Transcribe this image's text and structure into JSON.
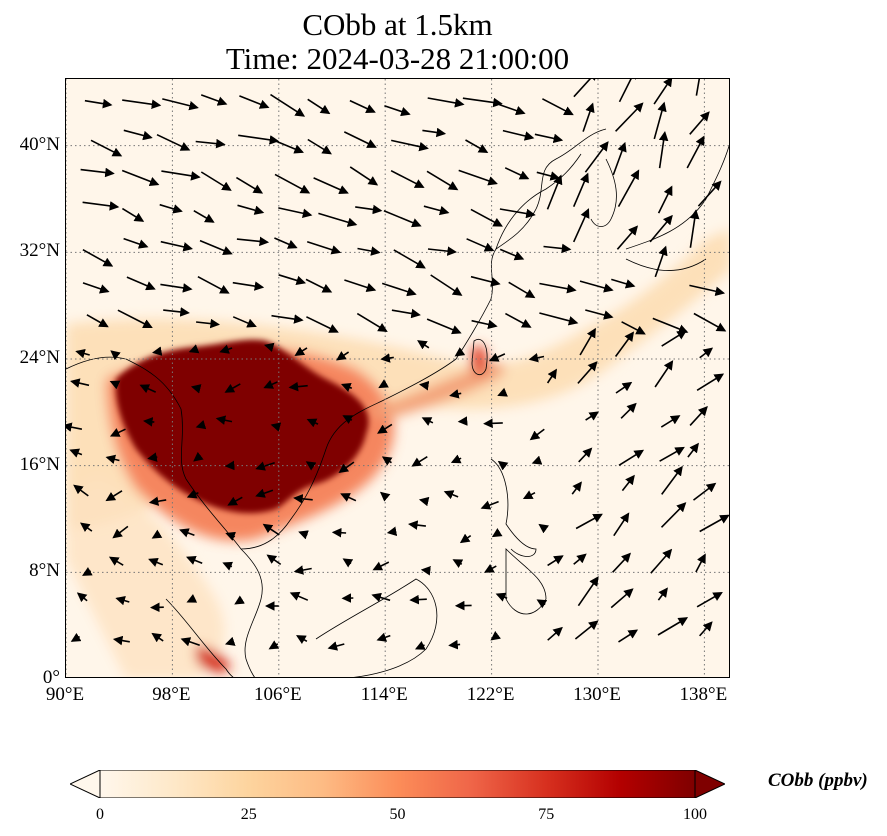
{
  "title": {
    "line1": "CObb at 1.5km",
    "line2": "Time: 2024-03-28 21:00:00"
  },
  "map": {
    "projection": "PlateCarree",
    "lon_range": [
      90,
      140
    ],
    "lat_range": [
      0,
      45
    ],
    "gridlines": "dotted",
    "lat_ticks": [
      "0°",
      "8°N",
      "16°N",
      "24°N",
      "32°N",
      "40°N"
    ],
    "lat_values": [
      0,
      8,
      16,
      24,
      32,
      40
    ],
    "lon_ticks": [
      "90°E",
      "98°E",
      "106°E",
      "114°E",
      "122°E",
      "130°E",
      "138°E"
    ],
    "lon_values": [
      90,
      98,
      106,
      114,
      122,
      130,
      138
    ],
    "field": "CObb",
    "colormap": "OrRd",
    "colors": [
      "#fff7ec",
      "#fee8c8",
      "#fdd49e",
      "#fdbb84",
      "#fc8d59",
      "#ef6548",
      "#d7301f",
      "#b30000",
      "#7f0000"
    ],
    "wind_vectors": "black quiver arrows"
  },
  "colorbar": {
    "label": "CObb (ppbv)",
    "ticks": [
      "0",
      "25",
      "50",
      "75",
      "100"
    ],
    "tick_values": [
      0,
      25,
      50,
      75,
      100
    ],
    "range": [
      0,
      100
    ],
    "extend": "both",
    "orientation": "horizontal"
  }
}
